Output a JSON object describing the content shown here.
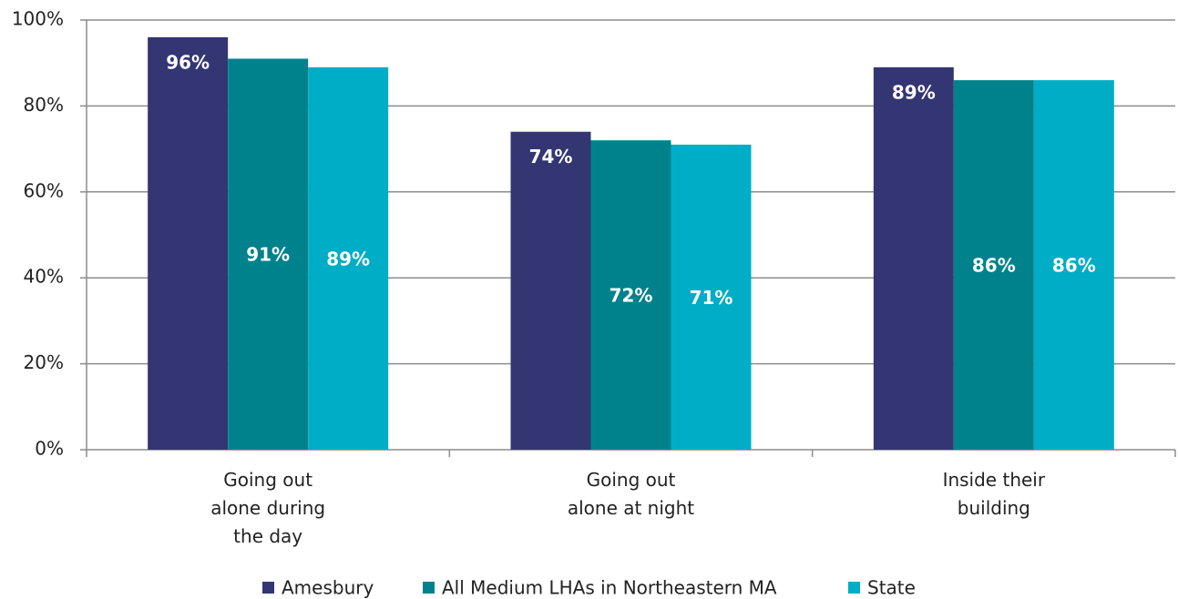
{
  "chart_data": {
    "type": "bar",
    "categories": [
      "Going out\nalone during\nthe day",
      "Going out\nalone at night",
      "Inside their\nbuilding"
    ],
    "series": [
      {
        "name": "Amesbury",
        "color": "#333673",
        "values": [
          96,
          74,
          89
        ],
        "value_labels": [
          "96%",
          "74%",
          "89%"
        ]
      },
      {
        "name": "All Medium LHAs in Northeastern MA",
        "color": "#00828c",
        "values": [
          91,
          72,
          86
        ],
        "value_labels": [
          "91%",
          "72%",
          "86%"
        ]
      },
      {
        "name": "State",
        "color": "#00adc6",
        "values": [
          89,
          71,
          86
        ],
        "value_labels": [
          "89%",
          "71%",
          "86%"
        ]
      }
    ],
    "ylim": [
      0,
      100
    ],
    "yticks": [
      {
        "value": 0,
        "label": "0%"
      },
      {
        "value": 20,
        "label": "20%"
      },
      {
        "value": 40,
        "label": "40%"
      },
      {
        "value": 60,
        "label": "60%"
      },
      {
        "value": 80,
        "label": "80%"
      },
      {
        "value": 100,
        "label": "100%"
      }
    ],
    "grid": true,
    "legend": "bottom"
  }
}
